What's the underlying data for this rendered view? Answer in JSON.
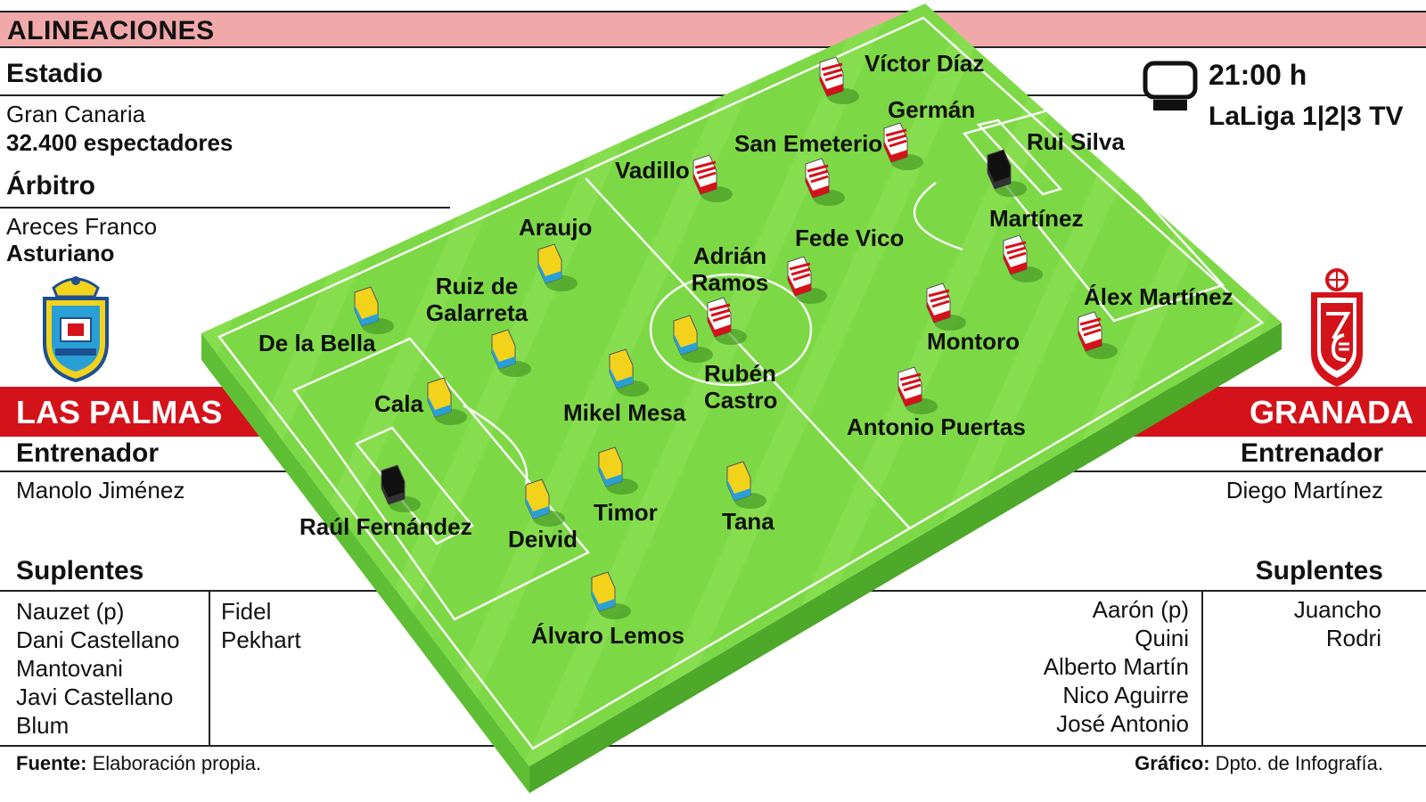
{
  "header": {
    "title": "ALINEACIONES"
  },
  "match_info": {
    "stadium_heading": "Estadio",
    "stadium_name": "Gran Canaria",
    "capacity": "32.400 espectadores",
    "referee_heading": "Árbitro",
    "referee_name": "Areces Franco",
    "referee_region": "Asturiano",
    "time": "21:00 h",
    "tv_channel": "LaLiga 1|2|3 TV"
  },
  "home": {
    "team": "LAS PALMAS",
    "coach_heading": "Entrenador",
    "coach": "Manolo Jiménez",
    "subs_heading": "Suplentes",
    "subs_col1": [
      "Nauzet (p)",
      "Dani Castellano",
      "Mantovani",
      "Javi Castellano",
      "Blum"
    ],
    "subs_col2": [
      "Fidel",
      "Pekhart"
    ],
    "lineup": [
      "Raúl Fernández",
      "Álvaro Lemos",
      "Deivid",
      "Timor",
      "Cala",
      "Tana",
      "Mikel Mesa",
      "De la Bella",
      "Ruiz de Galarreta",
      "Araujo",
      "Rubén Castro"
    ],
    "colors": {
      "kit_primary": "#f2d21b",
      "kit_secondary": "#2a9fd6"
    }
  },
  "away": {
    "team": "GRANADA",
    "coach_heading": "Entrenador",
    "coach": "Diego Martínez",
    "subs_heading": "Suplentes",
    "subs_col1": [
      "Aarón (p)",
      "Quini",
      "Alberto Martín",
      "Nico Aguirre",
      "José Antonio"
    ],
    "subs_col2": [
      "Juancho",
      "Rodri"
    ],
    "lineup": [
      "Rui Silva",
      "Víctor Díaz",
      "Germán",
      "Martínez",
      "Álex Martínez",
      "San Emeterio",
      "Montoro",
      "Vadillo",
      "Fede Vico",
      "Antonio Puertas",
      "Adrián Ramos"
    ],
    "colors": {
      "kit_primary": "#ffffff",
      "kit_secondary": "#d4121a"
    }
  },
  "footer": {
    "source_label": "Fuente:",
    "source_text": "Elaboración propia.",
    "graphic_label": "Gráfico:",
    "graphic_text": "Dpto. de Infografía."
  },
  "colors": {
    "pitch": "#7dd846",
    "banner_red": "#d4121a",
    "header_pink": "#f0a8a8",
    "goalkeeper": "#111111"
  },
  "icons": {
    "tv": "tv-icon",
    "home_crest": "las-palmas-crest-icon",
    "away_crest": "granada-crest-icon"
  }
}
